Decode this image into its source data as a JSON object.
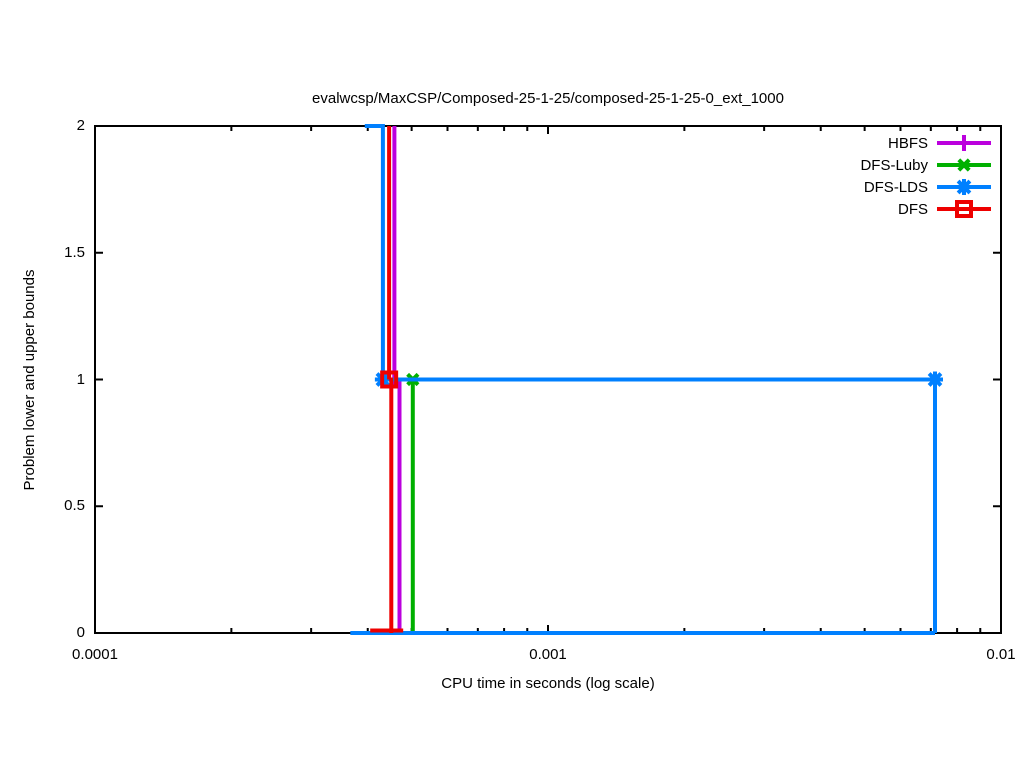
{
  "window": {
    "background": "#ffffff",
    "text_color": "#000000",
    "axis_color": "#000000"
  },
  "chart_data": {
    "type": "line",
    "title": "evalwcsp/MaxCSP/Composed-25-1-25/composed-25-1-25-0_ext_1000",
    "xlabel": "CPU time in seconds (log scale)",
    "ylabel": "Problem lower and upper bounds",
    "xscale": "log",
    "xlim": [
      0.0001,
      0.01
    ],
    "ylim": [
      0,
      2
    ],
    "grid": false,
    "legend_position": "top-right-inside",
    "x_ticks": [
      {
        "v": 0.0001,
        "label": "0.0001"
      },
      {
        "v": 0.001,
        "label": "0.001"
      },
      {
        "v": 0.01,
        "label": "0.01"
      }
    ],
    "y_ticks": [
      {
        "v": 0,
        "label": "0"
      },
      {
        "v": 0.5,
        "label": "0.5"
      },
      {
        "v": 1,
        "label": "1"
      },
      {
        "v": 1.5,
        "label": "1.5"
      },
      {
        "v": 2,
        "label": "2"
      }
    ],
    "series": [
      {
        "name": "HBFS",
        "color": "#bb00dd",
        "marker": "plus",
        "lines": [
          {
            "pts": [
              [
                0.000458,
                2
              ],
              [
                0.000458,
                1
              ]
            ]
          },
          {
            "pts": [
              [
                0.00047,
                1
              ],
              [
                0.00047,
                0
              ]
            ]
          }
        ],
        "marker_points": [
          [
            0.000458,
            1
          ]
        ]
      },
      {
        "name": "DFS-Luby",
        "color": "#00b000",
        "marker": "x",
        "lines": [
          {
            "pts": [
              [
                0.000503,
                1
              ],
              [
                0.000503,
                0
              ]
            ]
          }
        ],
        "marker_points": [
          [
            0.000503,
            1
          ]
        ]
      },
      {
        "name": "DFS-LDS",
        "color": "#0080ff",
        "marker": "asterisk",
        "lines": [
          {
            "pts": [
              [
                0.000394,
                2
              ],
              [
                0.000432,
                2
              ],
              [
                0.000432,
                1
              ],
              [
                0.00715,
                1
              ],
              [
                0.00715,
                0
              ]
            ]
          },
          {
            "pts": [
              [
                0.000366,
                0
              ],
              [
                0.00715,
                0
              ]
            ]
          }
        ],
        "marker_points": [
          [
            0.000432,
            1
          ],
          [
            0.00715,
            1
          ]
        ]
      },
      {
        "name": "DFS",
        "color": "#ee0000",
        "marker": "square",
        "lines": [
          {
            "pts": [
              [
                0.000446,
                2
              ],
              [
                0.000446,
                1
              ]
            ]
          },
          {
            "pts": [
              [
                0.000446,
                1
              ],
              [
                0.000451,
                1
              ],
              [
                0.000451,
                0
              ]
            ]
          },
          {
            "pts": [
              [
                0.000405,
                0
              ],
              [
                0.000479,
                0
              ]
            ],
            "dy": -2.5
          }
        ],
        "marker_points": [
          [
            0.000446,
            1
          ]
        ]
      }
    ]
  }
}
